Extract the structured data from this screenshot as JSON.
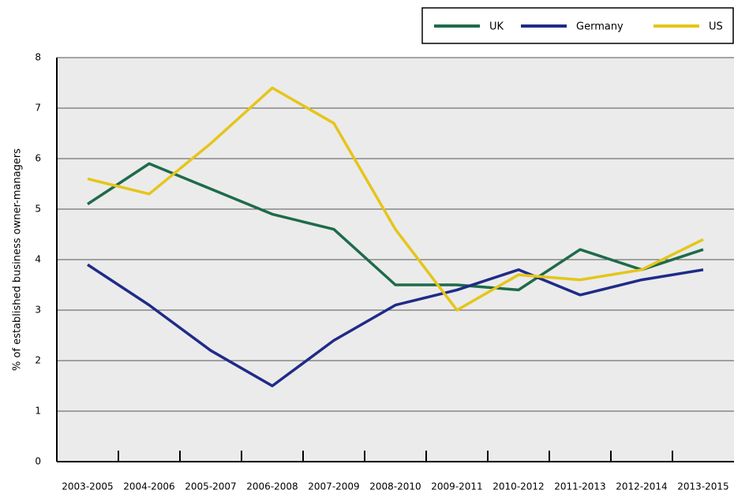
{
  "chart_data": {
    "type": "line",
    "y_label": "% of established business owner-managers",
    "categories": [
      "2003-2005",
      "2004-2006",
      "2005-2007",
      "2006-2008",
      "2007-2009",
      "2008-2010",
      "2009-2011",
      "2010-2012",
      "2011-2013",
      "2012-2014",
      "2013-2015"
    ],
    "series": [
      {
        "name": "UK",
        "color": "#1e6b4a",
        "values": [
          5.1,
          5.9,
          5.4,
          4.9,
          4.6,
          3.5,
          3.5,
          3.4,
          4.2,
          3.8,
          4.2
        ]
      },
      {
        "name": "Germany",
        "color": "#1f2b88",
        "values": [
          3.9,
          3.1,
          2.2,
          1.5,
          2.4,
          3.1,
          3.4,
          3.8,
          3.3,
          3.6,
          3.8
        ]
      },
      {
        "name": "US",
        "color": "#e5c51a",
        "values": [
          5.6,
          5.3,
          6.3,
          7.4,
          6.7,
          4.6,
          3.0,
          3.7,
          3.6,
          3.8,
          4.4
        ]
      }
    ],
    "ylim": [
      0,
      8
    ],
    "yticks": [
      0,
      1,
      2,
      3,
      4,
      5,
      6,
      7,
      8
    ],
    "grid": true,
    "legend": "top-right"
  }
}
